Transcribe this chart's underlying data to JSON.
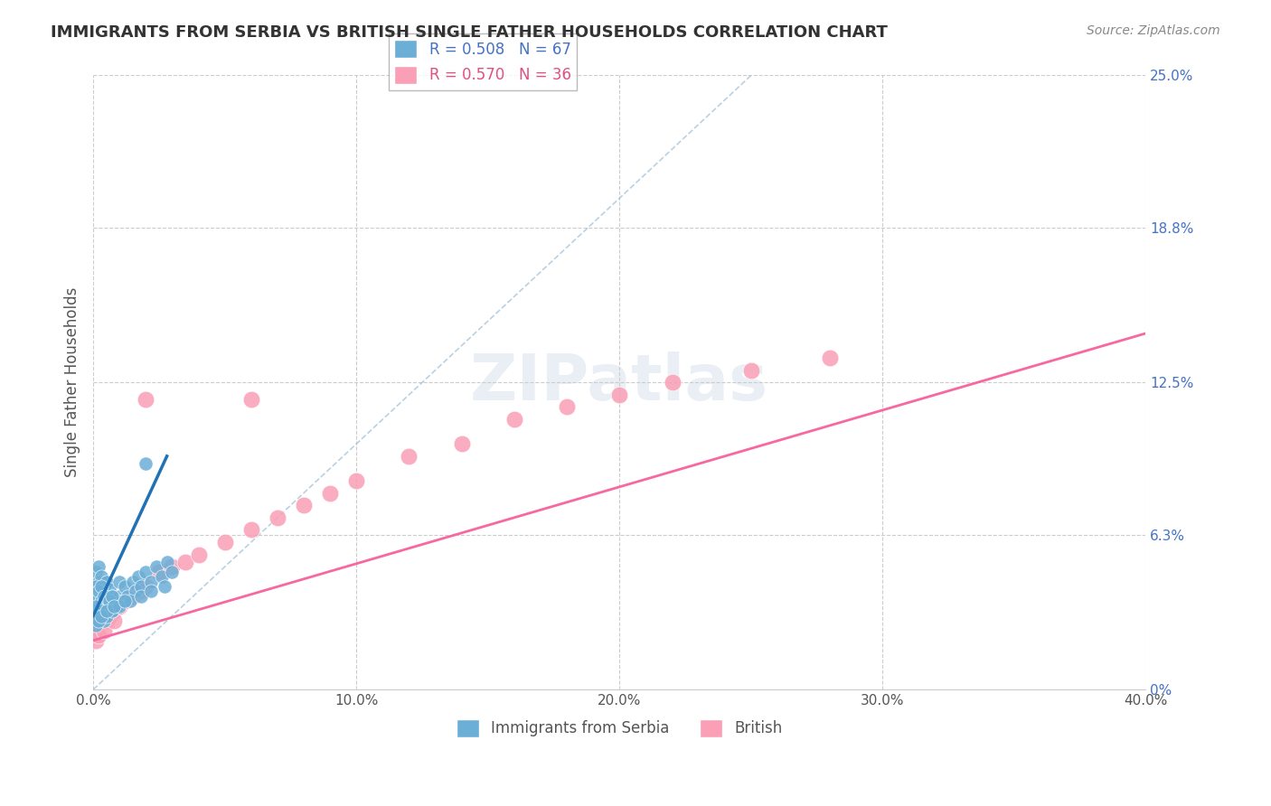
{
  "title": "IMMIGRANTS FROM SERBIA VS BRITISH SINGLE FATHER HOUSEHOLDS CORRELATION CHART",
  "source": "Source: ZipAtlas.com",
  "xlabel": "",
  "ylabel": "Single Father Households",
  "legend_label1": "Immigrants from Serbia",
  "legend_label2": "British",
  "R1": 0.508,
  "N1": 67,
  "R2": 0.57,
  "N2": 36,
  "xlim": [
    0.0,
    0.4
  ],
  "ylim": [
    0.0,
    0.25
  ],
  "yticks": [
    0.0,
    0.063,
    0.125,
    0.188,
    0.25
  ],
  "ytick_labels": [
    "0%",
    "6.3%",
    "12.5%",
    "18.8%",
    "25.0%"
  ],
  "xtick_labels": [
    "0.0%",
    "10.0%",
    "20.0%",
    "30.0%",
    "40.0%"
  ],
  "xticks": [
    0.0,
    0.1,
    0.2,
    0.3,
    0.4
  ],
  "color_blue": "#6baed6",
  "color_pink": "#fa9fb5",
  "color_blue_line": "#2171b5",
  "color_pink_line": "#f768a1",
  "color_ref_line": "#9ecae1",
  "watermark": "ZIPatlas",
  "blue_x": [
    0.001,
    0.001,
    0.001,
    0.001,
    0.002,
    0.002,
    0.002,
    0.002,
    0.002,
    0.003,
    0.003,
    0.003,
    0.004,
    0.004,
    0.005,
    0.005,
    0.006,
    0.006,
    0.007,
    0.007,
    0.008,
    0.009,
    0.01,
    0.01,
    0.011,
    0.012,
    0.013,
    0.015,
    0.016,
    0.017,
    0.018,
    0.02,
    0.022,
    0.024,
    0.026,
    0.028,
    0.03,
    0.001,
    0.001,
    0.001,
    0.002,
    0.002,
    0.003,
    0.003,
    0.004,
    0.005,
    0.006,
    0.007,
    0.001,
    0.001,
    0.002,
    0.003,
    0.004,
    0.005,
    0.007,
    0.01,
    0.014,
    0.018,
    0.022,
    0.027,
    0.001,
    0.002,
    0.003,
    0.005,
    0.008,
    0.012,
    0.02
  ],
  "blue_y": [
    0.035,
    0.042,
    0.048,
    0.032,
    0.038,
    0.044,
    0.05,
    0.028,
    0.035,
    0.04,
    0.046,
    0.03,
    0.036,
    0.042,
    0.038,
    0.044,
    0.035,
    0.041,
    0.032,
    0.038,
    0.036,
    0.034,
    0.038,
    0.044,
    0.036,
    0.042,
    0.038,
    0.044,
    0.04,
    0.046,
    0.042,
    0.048,
    0.044,
    0.05,
    0.046,
    0.052,
    0.048,
    0.03,
    0.036,
    0.042,
    0.034,
    0.04,
    0.036,
    0.042,
    0.038,
    0.034,
    0.036,
    0.038,
    0.028,
    0.034,
    0.03,
    0.032,
    0.028,
    0.03,
    0.032,
    0.034,
    0.036,
    0.038,
    0.04,
    0.042,
    0.026,
    0.028,
    0.03,
    0.032,
    0.034,
    0.036,
    0.092
  ],
  "pink_x": [
    0.001,
    0.002,
    0.003,
    0.004,
    0.005,
    0.006,
    0.008,
    0.01,
    0.012,
    0.015,
    0.018,
    0.02,
    0.025,
    0.03,
    0.035,
    0.04,
    0.05,
    0.06,
    0.07,
    0.08,
    0.09,
    0.1,
    0.12,
    0.14,
    0.16,
    0.18,
    0.2,
    0.22,
    0.25,
    0.28,
    0.001,
    0.002,
    0.004,
    0.008,
    0.02,
    0.06
  ],
  "pink_y": [
    0.025,
    0.028,
    0.03,
    0.032,
    0.028,
    0.03,
    0.032,
    0.034,
    0.036,
    0.038,
    0.04,
    0.042,
    0.048,
    0.05,
    0.052,
    0.055,
    0.06,
    0.065,
    0.07,
    0.075,
    0.08,
    0.085,
    0.095,
    0.1,
    0.11,
    0.115,
    0.12,
    0.125,
    0.13,
    0.135,
    0.02,
    0.022,
    0.024,
    0.028,
    0.118,
    0.118
  ],
  "blue_trend_x": [
    0.0,
    0.028
  ],
  "blue_trend_y": [
    0.03,
    0.095
  ],
  "pink_trend_x": [
    0.0,
    0.4
  ],
  "pink_trend_y": [
    0.02,
    0.145
  ],
  "ref_line_x": [
    0.0,
    0.25
  ],
  "ref_line_y": [
    0.0,
    0.25
  ]
}
